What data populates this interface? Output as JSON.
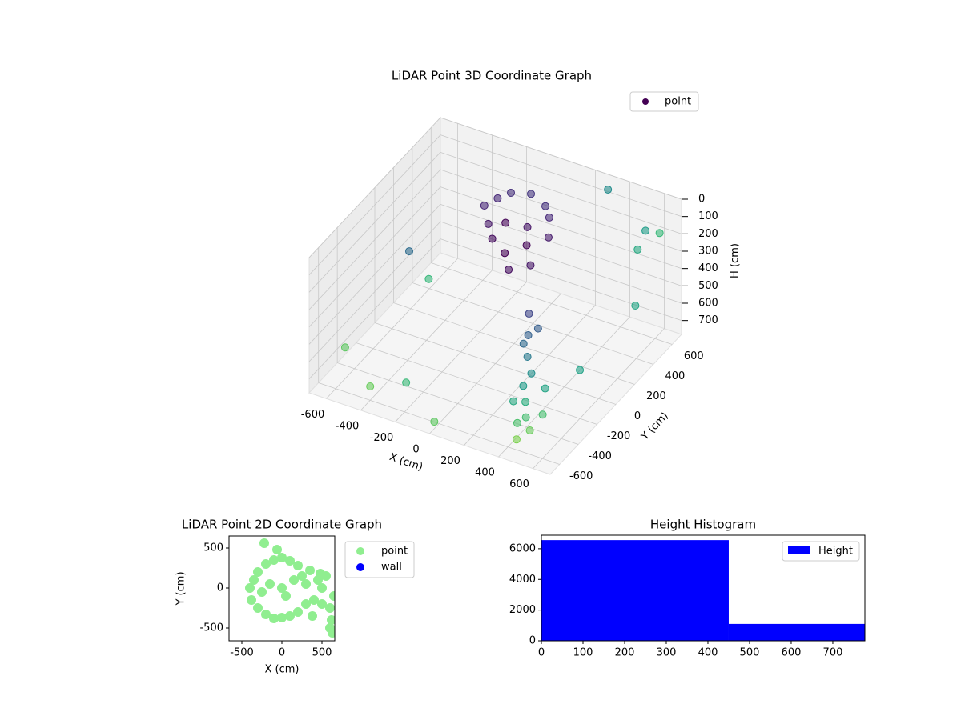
{
  "chart_data": [
    {
      "type": "scatter3d",
      "title": "LiDAR Point 3D Coordinate Graph",
      "xlabel": "X (cm)",
      "ylabel": "Y (cm)",
      "zlabel": "H (cm)",
      "series": [
        {
          "name": "point",
          "color": "#440154",
          "x": [
            -150,
            -100,
            0,
            100,
            150,
            -200,
            -50,
            50,
            100,
            -100,
            0,
            50,
            150,
            -150,
            200,
            250,
            300,
            350,
            400,
            380,
            420,
            450,
            300,
            330,
            400,
            450,
            500,
            350,
            480,
            520,
            -600,
            -550,
            600,
            500,
            -400,
            600,
            -500,
            300,
            650,
            -300,
            0,
            600
          ],
          "y": [
            300,
            350,
            380,
            350,
            300,
            250,
            200,
            250,
            150,
            150,
            100,
            50,
            100,
            200,
            200,
            -100,
            -200,
            -300,
            -350,
            -400,
            -450,
            -500,
            -250,
            -150,
            -500,
            -600,
            -550,
            -450,
            -350,
            -450,
            -500,
            300,
            500,
            600,
            -600,
            -200,
            0,
            650,
            300,
            -400,
            -650,
            650
          ],
          "z": [
            50,
            30,
            20,
            40,
            60,
            80,
            100,
            120,
            150,
            180,
            200,
            250,
            220,
            140,
            100,
            350,
            400,
            450,
            500,
            550,
            600,
            650,
            420,
            380,
            700,
            720,
            680,
            620,
            560,
            640,
            600,
            650,
            100,
            300,
            700,
            500,
            300,
            50,
            400,
            760,
            740,
            200
          ]
        }
      ],
      "colormap": "viridis",
      "xlim": [
        -700,
        700
      ],
      "ylim": [
        -700,
        700
      ],
      "zlim": [
        0,
        780
      ],
      "z_inverted": true,
      "xticks": [
        -600,
        -400,
        -200,
        0,
        200,
        400,
        600
      ],
      "yticks": [
        -600,
        -400,
        -200,
        0,
        200,
        400,
        600
      ],
      "zticks": [
        0,
        100,
        200,
        300,
        400,
        500,
        600,
        700
      ],
      "grid": true,
      "legend": "upper right"
    },
    {
      "type": "scatter",
      "title": "LiDAR Point 2D Coordinate Graph",
      "xlabel": "X (cm)",
      "ylabel": "Y (cm)",
      "series": [
        {
          "name": "point",
          "color": "#90ee90",
          "x": [
            -400,
            -380,
            -300,
            -300,
            -200,
            -200,
            -100,
            -100,
            0,
            0,
            0,
            100,
            100,
            200,
            200,
            250,
            300,
            350,
            400,
            450,
            500,
            550,
            600,
            650,
            -350,
            -250,
            -150,
            50,
            150,
            300,
            500,
            600,
            -220,
            -60,
            620,
            630,
            480,
            380
          ],
          "y": [
            0,
            -150,
            200,
            -250,
            300,
            -330,
            350,
            -380,
            380,
            -370,
            0,
            340,
            -350,
            280,
            -300,
            150,
            -200,
            220,
            -150,
            100,
            -200,
            150,
            -250,
            -100,
            100,
            -50,
            50,
            -100,
            100,
            50,
            0,
            -500,
            560,
            480,
            -400,
            -560,
            180,
            -350
          ]
        },
        {
          "name": "wall",
          "color": "#0000ff",
          "x": [],
          "y": []
        }
      ],
      "xlim": [
        -660,
        660
      ],
      "ylim": [
        -660,
        650
      ],
      "xticks": [
        -500,
        0,
        500
      ],
      "yticks": [
        -500,
        0,
        500
      ],
      "legend": "outside right"
    },
    {
      "type": "histogram",
      "title": "Height Histogram",
      "bins": [
        0,
        450,
        900
      ],
      "series": [
        {
          "name": "Height",
          "color": "#0000ff",
          "values": [
            6560,
            1100
          ]
        }
      ],
      "xlim": [
        0,
        777
      ],
      "ylim": [
        0,
        6880
      ],
      "xticks": [
        0,
        100,
        200,
        300,
        400,
        500,
        600,
        700
      ],
      "yticks": [
        0,
        2000,
        4000,
        6000
      ],
      "legend": "upper right"
    }
  ]
}
